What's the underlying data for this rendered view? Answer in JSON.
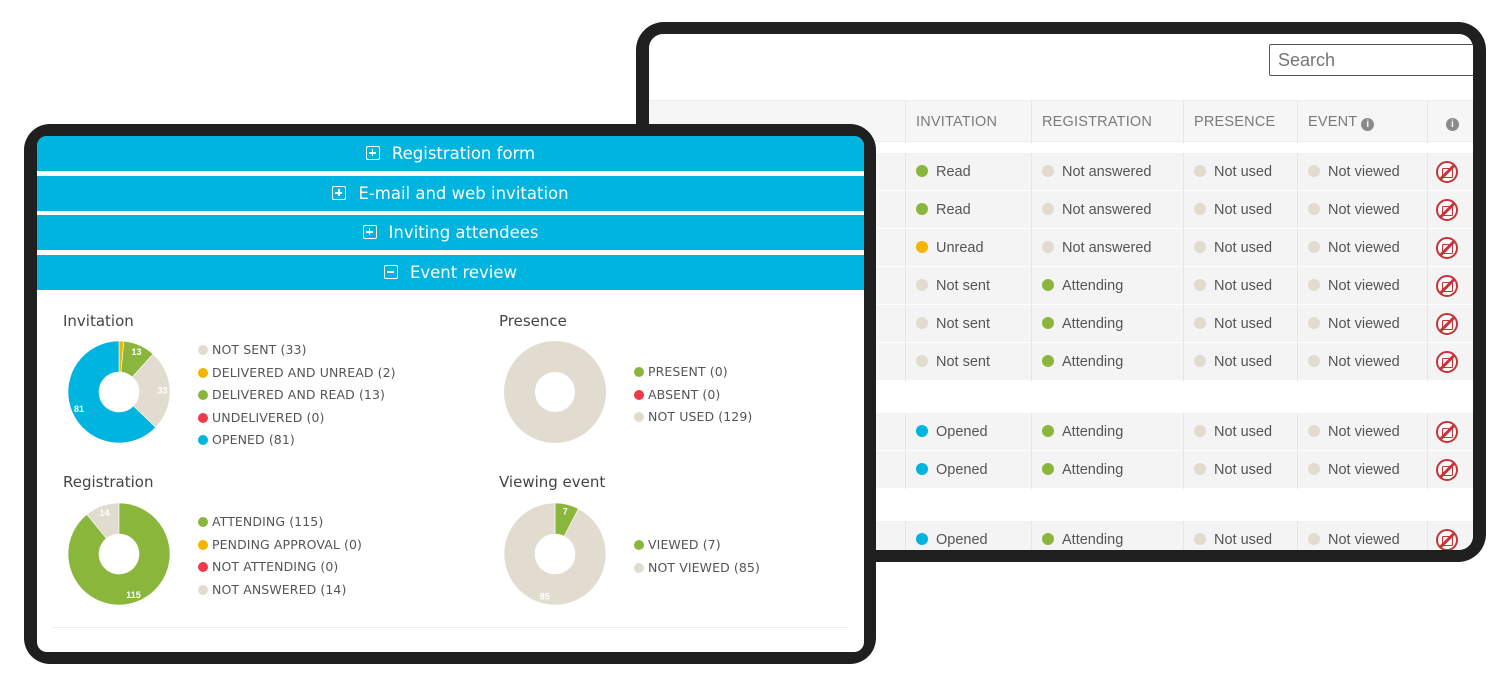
{
  "colors": {
    "accent": "#00b4e0",
    "read": "#8ab63c",
    "unread": "#f4b400",
    "notsent": "#e2dbcf",
    "opened": "#00b4e0",
    "undelivered": "#ee3a4a",
    "notused": "#e2dbcf",
    "forbidden": "#c8333a"
  },
  "table": {
    "search_placeholder": "Search",
    "headers": [
      "INVITATION",
      "REGISTRATION",
      "PRESENCE",
      "EVENT",
      "info-icon"
    ],
    "rows": [
      {
        "invitation": "Read",
        "inv_color": "#8ab63c",
        "registration": "Not answered",
        "reg_color": "#e2dbcf",
        "presence": "Not used",
        "event": "Not viewed"
      },
      {
        "invitation": "Read",
        "inv_color": "#8ab63c",
        "registration": "Not answered",
        "reg_color": "#e2dbcf",
        "presence": "Not used",
        "event": "Not viewed"
      },
      {
        "invitation": "Unread",
        "inv_color": "#f4b400",
        "registration": "Not answered",
        "reg_color": "#e2dbcf",
        "presence": "Not used",
        "event": "Not viewed"
      },
      {
        "invitation": "Not sent",
        "inv_color": "#e2dbcf",
        "registration": "Attending",
        "reg_color": "#8ab63c",
        "presence": "Not used",
        "event": "Not viewed"
      },
      {
        "invitation": "Not sent",
        "inv_color": "#e2dbcf",
        "registration": "Attending",
        "reg_color": "#8ab63c",
        "presence": "Not used",
        "event": "Not viewed"
      },
      {
        "invitation": "Not sent",
        "inv_color": "#e2dbcf",
        "registration": "Attending",
        "reg_color": "#8ab63c",
        "presence": "Not used",
        "event": "Not viewed"
      },
      {
        "invitation": "Opened",
        "inv_color": "#00b4e0",
        "registration": "Attending",
        "reg_color": "#8ab63c",
        "presence": "Not used",
        "event": "Not viewed"
      },
      {
        "invitation": "Opened",
        "inv_color": "#00b4e0",
        "registration": "Attending",
        "reg_color": "#8ab63c",
        "presence": "Not used",
        "event": "Not viewed"
      },
      {
        "invitation": "Opened",
        "inv_color": "#00b4e0",
        "registration": "Attending",
        "reg_color": "#8ab63c",
        "presence": "Not used",
        "event": "Not viewed"
      }
    ]
  },
  "accordion": [
    {
      "label": "Registration form",
      "state": "collapsed"
    },
    {
      "label": "E-mail and web invitation",
      "state": "collapsed"
    },
    {
      "label": "Inviting attendees",
      "state": "collapsed"
    },
    {
      "label": "Event review",
      "state": "expanded"
    }
  ],
  "review": {
    "invitation": {
      "title": "Invitation",
      "legend": [
        "NOT SENT (33)",
        "DELIVERED AND UNREAD (2)",
        "DELIVERED AND READ (13)",
        "UNDELIVERED (0)",
        "OPENED (81)"
      ]
    },
    "presence": {
      "title": "Presence",
      "legend": [
        "PRESENT (0)",
        "ABSENT (0)",
        "NOT USED (129)"
      ]
    },
    "registration": {
      "title": "Registration",
      "legend": [
        "ATTENDING (115)",
        "PENDING APPROVAL (0)",
        "NOT ATTENDING (0)",
        "NOT ANSWERED (14)"
      ]
    },
    "viewing": {
      "title": "Viewing event",
      "legend": [
        "VIEWED (7)",
        "NOT VIEWED (85)"
      ]
    }
  },
  "chart_data": [
    {
      "type": "pie",
      "title": "Invitation",
      "categories": [
        "NOT SENT",
        "DELIVERED AND UNREAD",
        "DELIVERED AND READ",
        "UNDELIVERED",
        "OPENED"
      ],
      "values": [
        33,
        2,
        13,
        0,
        81
      ],
      "colors": [
        "#e2dbcf",
        "#f4b400",
        "#8ab63c",
        "#ee3a4a",
        "#00b4e0"
      ]
    },
    {
      "type": "pie",
      "title": "Presence",
      "categories": [
        "PRESENT",
        "ABSENT",
        "NOT USED"
      ],
      "values": [
        0,
        0,
        129
      ],
      "colors": [
        "#8ab63c",
        "#ee3a4a",
        "#e2dbcf"
      ]
    },
    {
      "type": "pie",
      "title": "Registration",
      "categories": [
        "ATTENDING",
        "PENDING APPROVAL",
        "NOT ATTENDING",
        "NOT ANSWERED"
      ],
      "values": [
        115,
        0,
        0,
        14
      ],
      "colors": [
        "#8ab63c",
        "#f4b400",
        "#ee3a4a",
        "#e2dbcf"
      ]
    },
    {
      "type": "pie",
      "title": "Viewing event",
      "categories": [
        "VIEWED",
        "NOT VIEWED"
      ],
      "values": [
        7,
        85
      ],
      "colors": [
        "#8ab63c",
        "#e2dbcf"
      ]
    }
  ]
}
